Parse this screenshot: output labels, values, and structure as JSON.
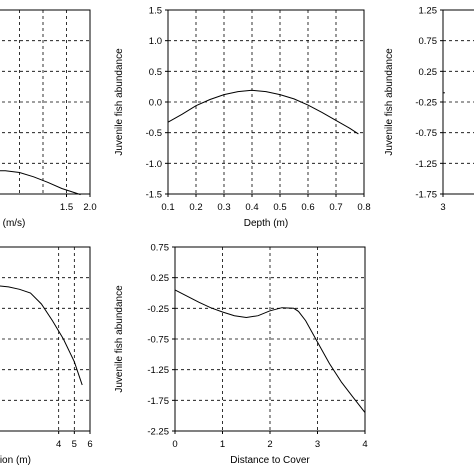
{
  "chart_data": [
    {
      "type": "line",
      "xlabel": "(m/s)",
      "ylabel": "",
      "xlim": [
        0.0,
        2.0
      ],
      "ylim": [
        -1.5,
        1.5
      ],
      "xticks": [
        1.5,
        2.0
      ],
      "xtick_labels": [
        "1.5",
        "2.0"
      ],
      "x_grid": [
        0.5,
        1.0,
        1.5
      ],
      "yticks": [
        -1.5,
        -1.0,
        -0.5,
        0.0,
        0.5,
        1.0,
        1.5
      ],
      "ytick_labels": [],
      "series": [
        {
          "x": [
            0.0,
            0.2,
            0.5,
            0.8,
            1.1,
            1.4,
            1.8
          ],
          "y": [
            -1.12,
            -1.12,
            -1.15,
            -1.22,
            -1.31,
            -1.41,
            -1.51
          ]
        }
      ]
    },
    {
      "type": "line",
      "xlabel": "Depth (m)",
      "ylabel": "Juvenile fish abundance",
      "xlim": [
        0.1,
        0.8
      ],
      "ylim": [
        -1.5,
        1.5
      ],
      "xticks": [
        0.1,
        0.2,
        0.3,
        0.4,
        0.5,
        0.6,
        0.7,
        0.8
      ],
      "xtick_labels": [
        "0.1",
        "0.2",
        "0.3",
        "0.4",
        "0.5",
        "0.6",
        "0.7",
        "0.8"
      ],
      "x_grid": [
        0.2,
        0.3,
        0.4,
        0.5,
        0.6,
        0.7
      ],
      "yticks": [
        -1.5,
        -1.0,
        -0.5,
        0.0,
        0.5,
        1.0,
        1.5
      ],
      "ytick_labels": [
        "-1.5",
        "-1.0",
        "-0.5",
        "0.0",
        "0.5",
        "1.0",
        "1.5"
      ],
      "series": [
        {
          "x": [
            0.1,
            0.15,
            0.2,
            0.25,
            0.3,
            0.35,
            0.4,
            0.45,
            0.5,
            0.55,
            0.6,
            0.65,
            0.7,
            0.75,
            0.78
          ],
          "y": [
            -0.33,
            -0.2,
            -0.06,
            0.04,
            0.12,
            0.17,
            0.19,
            0.17,
            0.12,
            0.05,
            -0.05,
            -0.17,
            -0.3,
            -0.43,
            -0.52
          ]
        }
      ]
    },
    {
      "type": "line",
      "xlabel": "",
      "ylabel": "Juvenile fish abundance",
      "xlim": [
        3,
        5
      ],
      "ylim": [
        -1.75,
        1.25
      ],
      "xticks": [
        3
      ],
      "xtick_labels": [
        "3"
      ],
      "x_grid": [],
      "yticks": [
        -1.75,
        -1.25,
        -0.75,
        -0.25,
        0.25,
        0.75,
        1.25
      ],
      "ytick_labels": [
        "-1.75",
        "-1.25",
        "-0.75",
        "-0.25",
        "0.25",
        "0.75",
        "1.25"
      ],
      "series": [
        {
          "x": [
            3.0,
            3.1
          ],
          "y": [
            -0.1,
            -0.1
          ]
        }
      ]
    },
    {
      "type": "line",
      "xlabel": "tion (m)",
      "ylabel": "",
      "xlim": [
        0,
        6
      ],
      "ylim": [
        -2.25,
        0.75
      ],
      "xticks": [
        4,
        5,
        6
      ],
      "xtick_labels": [
        "4",
        "5",
        "6"
      ],
      "x_grid": [
        4,
        5
      ],
      "yticks": [
        -2.25,
        -1.75,
        -1.25,
        -0.75,
        -0.25,
        0.25,
        0.75
      ],
      "ytick_labels": [],
      "series": [
        {
          "x": [
            0.0,
            0.8,
            1.5,
            2.2,
            2.9,
            3.6,
            4.3,
            5.0,
            5.5
          ],
          "y": [
            0.12,
            0.1,
            0.06,
            0.0,
            -0.18,
            -0.45,
            -0.75,
            -1.12,
            -1.5
          ]
        }
      ]
    },
    {
      "type": "line",
      "xlabel": "Distance to Cover",
      "ylabel": "Juvenile fish abundance",
      "xlim": [
        0,
        4
      ],
      "ylim": [
        -2.25,
        0.75
      ],
      "xticks": [
        0,
        1,
        2,
        3,
        4
      ],
      "xtick_labels": [
        "0",
        "1",
        "2",
        "3",
        "4"
      ],
      "x_grid": [
        1,
        2,
        3
      ],
      "yticks": [
        -2.25,
        -1.75,
        -1.25,
        -0.75,
        -0.25,
        0.25,
        0.75
      ],
      "ytick_labels": [
        "-2.25",
        "-1.75",
        "-1.25",
        "-0.75",
        "-0.25",
        "0.25",
        "0.75"
      ],
      "series": [
        {
          "x": [
            0.0,
            0.25,
            0.5,
            0.75,
            1.0,
            1.25,
            1.5,
            1.75,
            2.0,
            2.25,
            2.5,
            2.6,
            2.75,
            3.0,
            3.25,
            3.5,
            3.75,
            4.0
          ],
          "y": [
            0.05,
            -0.05,
            -0.15,
            -0.24,
            -0.31,
            -0.37,
            -0.4,
            -0.37,
            -0.29,
            -0.24,
            -0.25,
            -0.3,
            -0.45,
            -0.8,
            -1.15,
            -1.45,
            -1.7,
            -1.95
          ]
        }
      ]
    }
  ]
}
